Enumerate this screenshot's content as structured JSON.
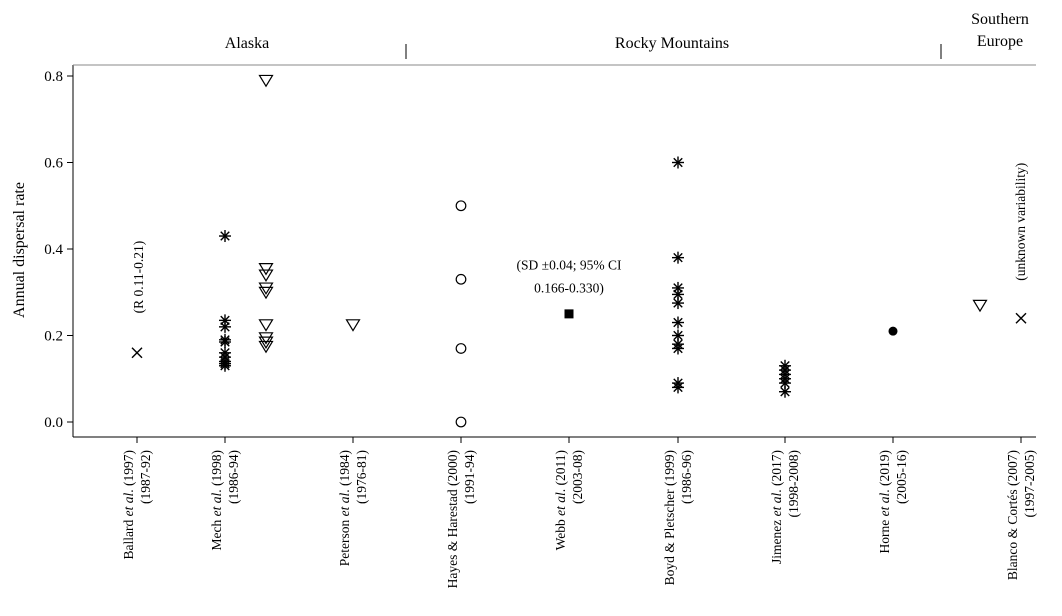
{
  "chart_data": {
    "type": "scatter",
    "ylabel": "Annual dispersal rate",
    "ylim": [
      -0.03,
      0.835
    ],
    "yticks": [
      {
        "value": 0.0,
        "label": "0.0"
      },
      {
        "value": 0.2,
        "label": "0.2"
      },
      {
        "value": 0.4,
        "label": "0.4"
      },
      {
        "value": 0.6,
        "label": "0.6"
      },
      {
        "value": 0.8,
        "label": "0.8"
      }
    ],
    "regions": [
      {
        "id": "alaska",
        "lines": [
          "Alaska"
        ],
        "span": [
          0,
          2
        ]
      },
      {
        "id": "rocky-mountains",
        "lines": [
          "Rocky Mountains"
        ],
        "span": [
          3,
          7
        ]
      },
      {
        "id": "southern-europe",
        "lines": [
          "Southern",
          "Europe"
        ],
        "span": [
          8,
          8
        ]
      }
    ],
    "categories": [
      {
        "line1_pre": "Ballard ",
        "line1_em": "et al",
        "line1_post": ". (1997)",
        "line2": "(1987-92)"
      },
      {
        "line1_pre": "Mech ",
        "line1_em": "et al",
        "line1_post": ". (1998)",
        "line2": "(1986-94)"
      },
      {
        "line1_pre": "Peterson ",
        "line1_em": "et al",
        "line1_post": ". (1984)",
        "line2": "(1976-81)"
      },
      {
        "line1_pre": "Hayes & Harestad (2000)",
        "line1_em": "",
        "line1_post": "",
        "line2": "(1991-94)"
      },
      {
        "line1_pre": "Webb ",
        "line1_em": "et al",
        "line1_post": ". (2011)",
        "line2": "(2003-08)"
      },
      {
        "line1_pre": "Boyd & Pletscher (1999)",
        "line1_em": "",
        "line1_post": "",
        "line2": "(1986-96)"
      },
      {
        "line1_pre": "Jimenez ",
        "line1_em": "et al",
        "line1_post": ". (2017)",
        "line2": "(1998-2008)"
      },
      {
        "line1_pre": "Horne ",
        "line1_em": "et al",
        "line1_post": ". (2019)",
        "line2": "(2005-16)"
      },
      {
        "line1_pre": "Blanco & Cortés (2007)",
        "line1_em": "",
        "line1_post": "",
        "line2": "(1997-2005)"
      }
    ],
    "series": [
      {
        "category": 0,
        "marker": "cross",
        "points": [
          {
            "offset": 0,
            "y": 0.16
          }
        ]
      },
      {
        "category": 1,
        "marker": "asterisk",
        "points": [
          {
            "offset": 0,
            "y": 0.43
          },
          {
            "offset": 0,
            "y": 0.235
          },
          {
            "offset": 0,
            "y": 0.22
          },
          {
            "offset": 0,
            "y": 0.19
          },
          {
            "offset": 0,
            "y": 0.185
          },
          {
            "offset": 0,
            "y": 0.16
          },
          {
            "offset": 0,
            "y": 0.15
          },
          {
            "offset": 0,
            "y": 0.14
          },
          {
            "offset": 0,
            "y": 0.135
          },
          {
            "offset": 0,
            "y": 0.13
          }
        ]
      },
      {
        "category": 1,
        "marker": "triangle-down",
        "points": [
          {
            "offset": 1,
            "y": 0.79
          },
          {
            "offset": 1,
            "y": 0.355
          },
          {
            "offset": 1,
            "y": 0.34
          },
          {
            "offset": 1,
            "y": 0.31
          },
          {
            "offset": 1,
            "y": 0.3
          },
          {
            "offset": 1,
            "y": 0.225
          },
          {
            "offset": 1,
            "y": 0.195
          },
          {
            "offset": 1,
            "y": 0.185
          },
          {
            "offset": 1,
            "y": 0.175
          }
        ]
      },
      {
        "category": 2,
        "marker": "triangle-down",
        "points": [
          {
            "offset": 0,
            "y": 0.225
          }
        ]
      },
      {
        "category": 3,
        "marker": "circle-open",
        "points": [
          {
            "offset": 0,
            "y": 0.5
          },
          {
            "offset": 0,
            "y": 0.33
          },
          {
            "offset": 0,
            "y": 0.17
          },
          {
            "offset": 0,
            "y": 0.0
          }
        ]
      },
      {
        "category": 4,
        "marker": "square",
        "points": [
          {
            "offset": 0,
            "y": 0.25
          }
        ]
      },
      {
        "category": 5,
        "marker": "asterisk",
        "points": [
          {
            "offset": 0,
            "y": 0.6
          },
          {
            "offset": 0,
            "y": 0.38
          },
          {
            "offset": 0,
            "y": 0.31
          },
          {
            "offset": 0,
            "y": 0.295
          },
          {
            "offset": 0,
            "y": 0.275
          },
          {
            "offset": 0,
            "y": 0.23
          },
          {
            "offset": 0,
            "y": 0.2
          },
          {
            "offset": 0,
            "y": 0.18
          },
          {
            "offset": 0,
            "y": 0.17
          },
          {
            "offset": 0,
            "y": 0.09
          },
          {
            "offset": 0,
            "y": 0.08
          }
        ]
      },
      {
        "category": 6,
        "marker": "asterisk",
        "points": [
          {
            "offset": 0,
            "y": 0.13
          },
          {
            "offset": 0,
            "y": 0.12
          },
          {
            "offset": 0,
            "y": 0.11
          },
          {
            "offset": 0,
            "y": 0.1
          },
          {
            "offset": 0,
            "y": 0.09
          },
          {
            "offset": 0,
            "y": 0.07
          }
        ]
      },
      {
        "category": 7,
        "marker": "circle-filled",
        "points": [
          {
            "offset": 0,
            "y": 0.21
          }
        ]
      },
      {
        "category": 8,
        "marker": "triangle-down",
        "points": [
          {
            "offset": -1,
            "y": 0.27
          }
        ]
      },
      {
        "category": 8,
        "marker": "cross",
        "points": [
          {
            "offset": 0,
            "y": 0.24
          }
        ]
      }
    ],
    "annotations": [
      {
        "id": "ballard-range",
        "lines": [
          "(R 0.11-0.21)"
        ],
        "category": 0,
        "rotated": true
      },
      {
        "id": "webb-sd",
        "lines": [
          "(SD ±0.04; 95% CI",
          "0.166-0.330)"
        ],
        "category": 4,
        "rotated": false
      },
      {
        "id": "blanco-variability",
        "lines": [
          "(unknown variability)"
        ],
        "category": 8,
        "rotated": true
      }
    ],
    "grid": false,
    "legend": "none"
  }
}
